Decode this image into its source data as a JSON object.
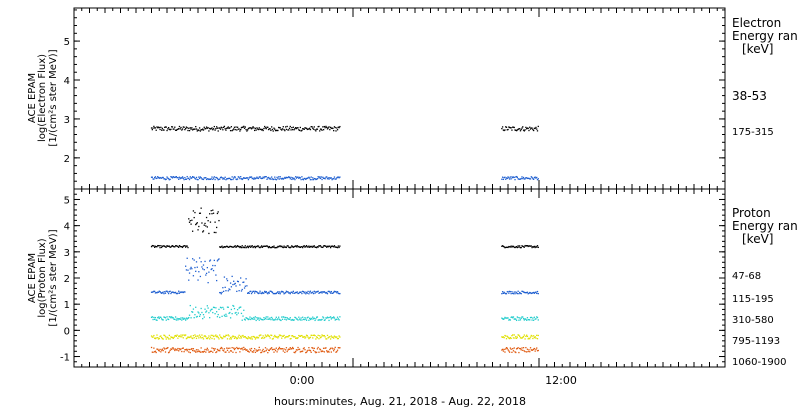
{
  "colors": {
    "frame": "#000000",
    "black": "#000000",
    "blue": "#1f5fd0",
    "cyan": "#22cccc",
    "yellow": "#e0e000",
    "orange": "#e05a10"
  },
  "chart_data": [
    {
      "type": "scatter",
      "panel": "electron",
      "ylabel_lines": [
        "ACE EPAM",
        "log(Electron Flux)",
        "[1/(cm²s ster MeV)]"
      ],
      "ylim": [
        1.2,
        5.85
      ],
      "yticks": [
        2,
        3,
        4,
        5
      ],
      "legend": {
        "title_lines": [
          "Electron",
          "Energy ran",
          "[keV]"
        ],
        "placement": "right"
      },
      "series": [
        {
          "name": "38-53",
          "color": "black",
          "segments": [
            [
              -13.0,
              -0.8
            ],
            [
              9.6,
              12.0
            ]
          ],
          "level": 2.75,
          "noise": 0.06
        },
        {
          "name": "175-315",
          "color": "blue",
          "segments": [
            [
              -13.0,
              -0.8
            ],
            [
              9.6,
              12.0
            ]
          ],
          "level": 1.48,
          "noise": 0.04
        }
      ]
    },
    {
      "type": "scatter",
      "panel": "proton",
      "ylabel_lines": [
        "ACE EPAM",
        "log(Proton Flux)",
        "[1/(cm²s ster MeV)]"
      ],
      "ylim": [
        -1.4,
        5.4
      ],
      "yticks": [
        -1,
        0,
        1,
        2,
        3,
        4,
        5
      ],
      "legend": {
        "title_lines": [
          "Proton",
          "Energy ran",
          "[keV]"
        ],
        "placement": "right"
      },
      "series": [
        {
          "name": "47-68",
          "color": "black",
          "segments": [
            [
              -13.0,
              -0.8
            ],
            [
              9.6,
              12.0
            ]
          ],
          "level": 3.2,
          "noise": 0.04
        },
        {
          "name": "115-195",
          "color": "blue",
          "segments": [
            [
              -13.0,
              -0.8
            ],
            [
              9.6,
              12.0
            ]
          ],
          "level": 1.45,
          "noise": 0.05
        },
        {
          "name": "310-580",
          "color": "cyan",
          "segments": [
            [
              -13.0,
              -0.8
            ],
            [
              9.6,
              12.0
            ]
          ],
          "level": 0.45,
          "noise": 0.07
        },
        {
          "name": "795-1193",
          "color": "yellow",
          "segments": [
            [
              -13.0,
              -0.8
            ],
            [
              9.6,
              12.0
            ]
          ],
          "level": -0.25,
          "noise": 0.08
        },
        {
          "name": "1060-1900",
          "color": "orange",
          "segments": [
            [
              -13.0,
              -0.8
            ],
            [
              9.6,
              12.0
            ]
          ],
          "level": -0.75,
          "noise": 0.1
        }
      ]
    }
  ],
  "x_axis": {
    "xlim": [
      -18.0,
      24.0
    ],
    "major_ticks": [
      0,
      12
    ],
    "tick_labels": [
      "0:00",
      "12:00"
    ],
    "xlabel": "hours:minutes, Aug. 21, 2018 - Aug. 22, 2018"
  }
}
